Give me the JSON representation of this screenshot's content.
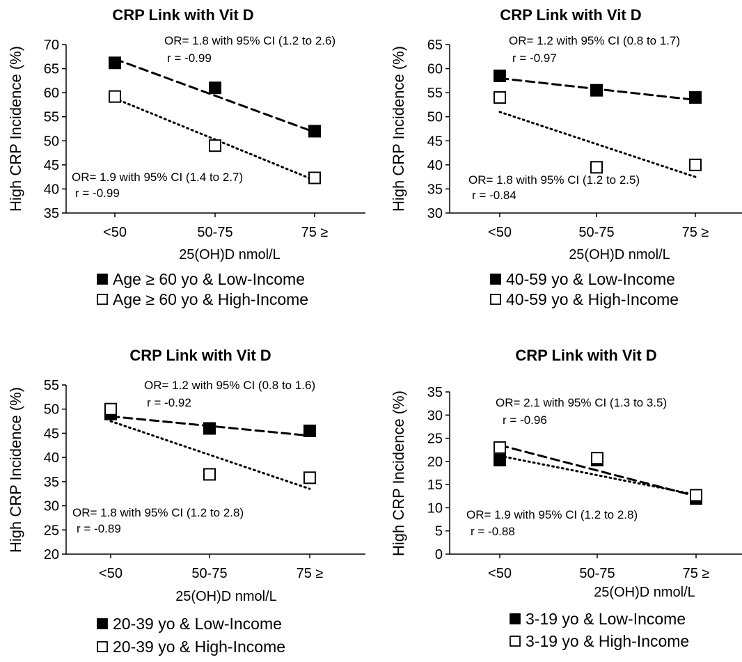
{
  "chart_data": [
    {
      "type": "scatter",
      "title": "CRP Link with Vit D",
      "xlabel": "25(OH)D nmol/L",
      "ylabel": "High CRP Incidence (%)",
      "categories": [
        "<50",
        "50-75",
        "75 ≥"
      ],
      "ylim": [
        35,
        70
      ],
      "yticks": [
        35,
        40,
        45,
        50,
        55,
        60,
        65,
        70
      ],
      "grid": false,
      "series": [
        {
          "name": "Age ≥ 60 yo & Low-Income",
          "marker": "filled-square",
          "trendline": "dashed",
          "values": [
            66.2,
            61.0,
            52.0
          ],
          "trend": [
            67.0,
            59.5,
            51.8
          ]
        },
        {
          "name": "Age ≥ 60 yo & High-Income",
          "marker": "open-square",
          "trendline": "dotted",
          "values": [
            59.2,
            49.0,
            42.3
          ],
          "trend": [
            58.8,
            50.3,
            41.8
          ]
        }
      ],
      "annotations": [
        {
          "text": "OR= 1.8 with 95% CI (1.2 to 2.6)",
          "series": 0
        },
        {
          "text": "r = -0.99",
          "series": 0
        },
        {
          "text": "OR= 1.9 with 95% CI (1.4 to 2.7)",
          "series": 1
        },
        {
          "text": "r = -0.99",
          "series": 1
        }
      ]
    },
    {
      "type": "scatter",
      "title": "CRP Link with Vit D",
      "xlabel": "25(OH)D nmol/L",
      "ylabel": "High CRP Incidence (%)",
      "categories": [
        "<50",
        "50-75",
        "75 ≥"
      ],
      "ylim": [
        30,
        65
      ],
      "yticks": [
        30,
        35,
        40,
        45,
        50,
        55,
        60,
        65
      ],
      "grid": false,
      "series": [
        {
          "name": "40-59 yo & Low-Income",
          "marker": "filled-square",
          "trendline": "dashed",
          "values": [
            58.5,
            55.5,
            54.0
          ],
          "trend": [
            58.0,
            55.7,
            53.5
          ]
        },
        {
          "name": "40-59 yo & High-Income",
          "marker": "open-square",
          "trendline": "dotted",
          "values": [
            54.0,
            39.5,
            40.0
          ],
          "trend": [
            51.0,
            44.2,
            37.5
          ]
        }
      ],
      "annotations": [
        {
          "text": "OR= 1.2 with 95% CI (0.8 to 1.7)",
          "series": 0
        },
        {
          "text": "r = -0.97",
          "series": 0
        },
        {
          "text": "OR= 1.8 with 95% CI (1.2 to 2.5)",
          "series": 1
        },
        {
          "text": "r = -0.84",
          "series": 1
        }
      ]
    },
    {
      "type": "scatter",
      "title": "CRP Link with Vit D",
      "xlabel": "25(OH)D nmol/L",
      "ylabel": "High CRP Incidence (%)",
      "categories": [
        "<50",
        "50-75",
        "75 ≥"
      ],
      "ylim": [
        20,
        55
      ],
      "yticks": [
        20,
        25,
        30,
        35,
        40,
        45,
        50,
        55
      ],
      "grid": false,
      "series": [
        {
          "name": "20-39 yo & Low-Income",
          "marker": "filled-square",
          "trendline": "dashed",
          "values": [
            49.0,
            46.0,
            45.5
          ],
          "trend": [
            48.5,
            46.5,
            44.5
          ]
        },
        {
          "name": "20-39 yo & High-Income",
          "marker": "open-square",
          "trendline": "dotted",
          "values": [
            50.0,
            36.5,
            35.8
          ],
          "trend": [
            47.5,
            40.5,
            33.5
          ]
        }
      ],
      "annotations": [
        {
          "text": "OR= 1.2 with 95% CI (0.8 to 1.6)",
          "series": 0
        },
        {
          "text": "r = -0.92",
          "series": 0
        },
        {
          "text": "OR= 1.8 with 95% CI (1.2 to 2.8)",
          "series": 1
        },
        {
          "text": "r = -0.89",
          "series": 1
        }
      ]
    },
    {
      "type": "scatter",
      "title": "CRP Link with Vit D",
      "xlabel": "25(OH)D nmol/L",
      "ylabel": "High CRP Incidence (%)",
      "categories": [
        "<50",
        "50-75",
        "75 ≥"
      ],
      "ylim": [
        0,
        35
      ],
      "yticks": [
        0,
        5,
        10,
        15,
        20,
        25,
        30,
        35
      ],
      "grid": false,
      "series": [
        {
          "name": "3-19 yo & Low-Income",
          "marker": "filled-square",
          "trendline": "dotted",
          "values": [
            20.3,
            20.3,
            12.0
          ],
          "trend": [
            21.2,
            17.0,
            12.8
          ]
        },
        {
          "name": "3-19 yo & High-Income",
          "marker": "open-square",
          "trendline": "dashed",
          "values": [
            23.0,
            20.7,
            12.7
          ],
          "trend": [
            23.5,
            18.0,
            12.5
          ]
        }
      ],
      "annotations": [
        {
          "text": "OR= 2.1 with 95% CI (1.3 to 3.5)",
          "series": 1
        },
        {
          "text": "r = -0.96",
          "series": 1
        },
        {
          "text": "OR= 1.9 with 95% CI (1.2 to 2.8)",
          "series": 0
        },
        {
          "text": "r = -0.88",
          "series": 0
        }
      ]
    }
  ]
}
